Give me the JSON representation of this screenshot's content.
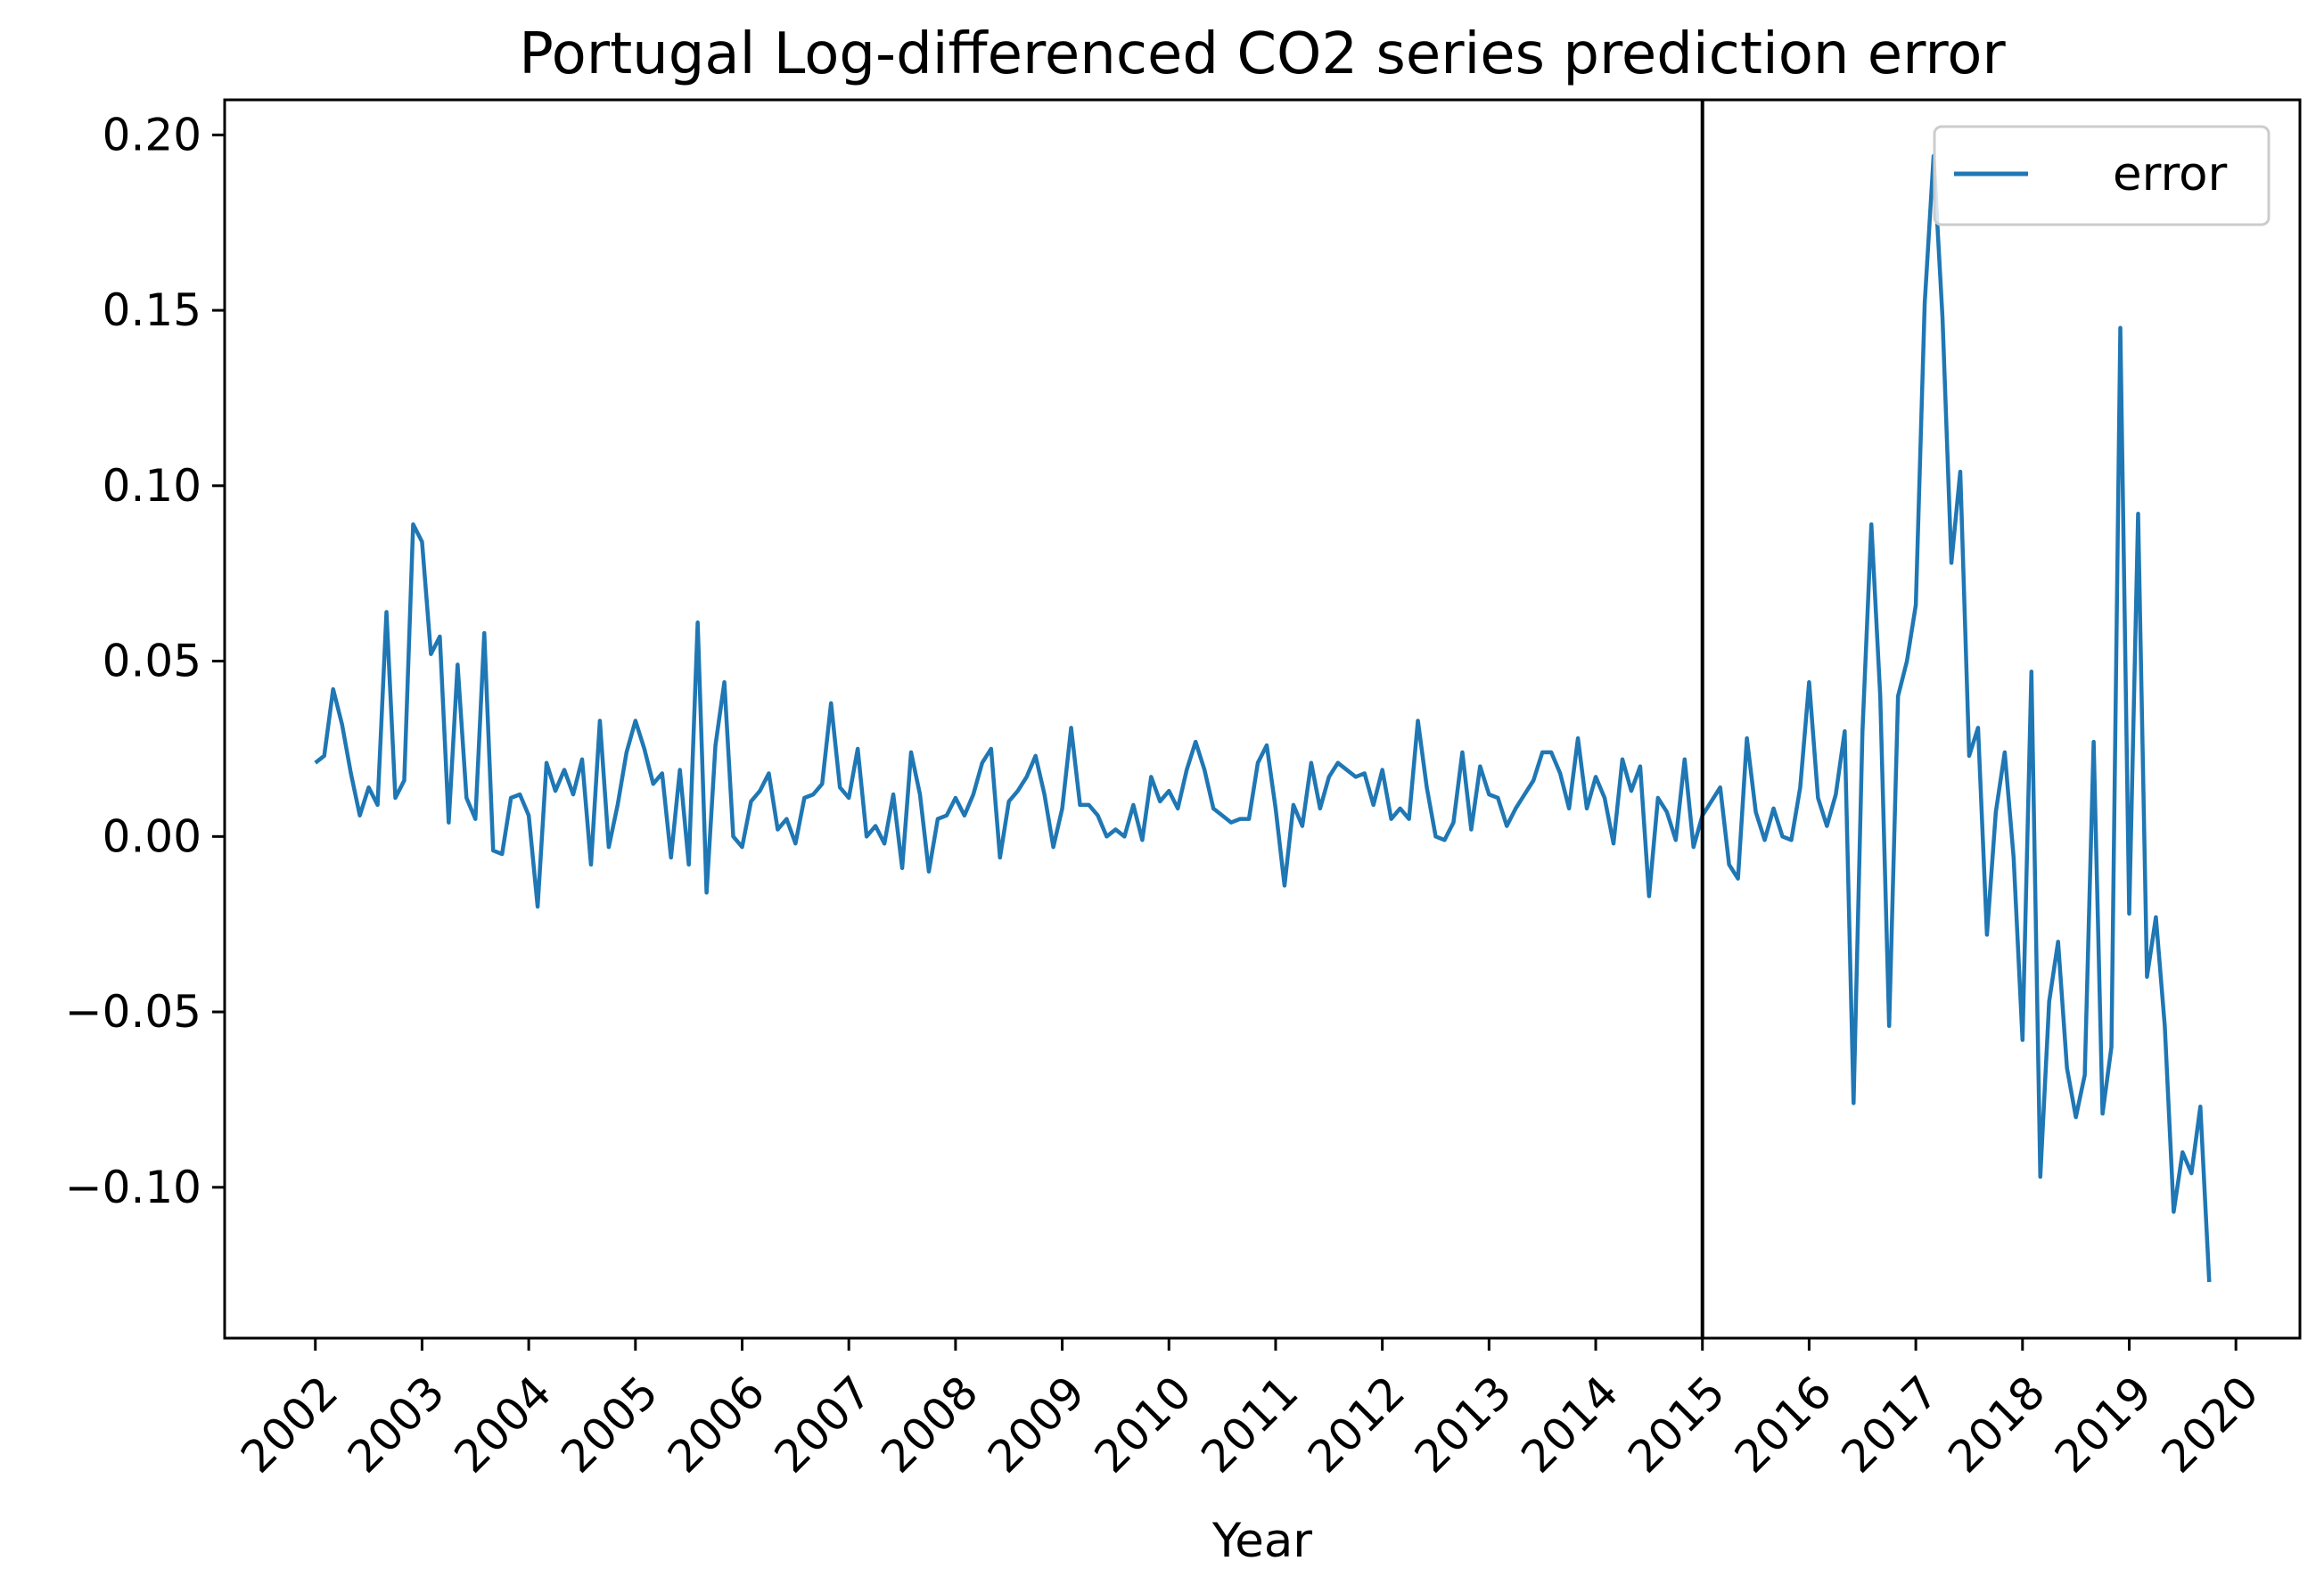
{
  "chart_data": {
    "type": "line",
    "title": "Portugal Log-differenced CO2 series prediction error",
    "xlabel": "Year",
    "ylabel": "",
    "xlim": [
      2001.15,
      2020.6
    ],
    "ylim": [
      -0.143,
      0.21
    ],
    "x_ticks": [
      "2002",
      "2003",
      "2004",
      "2005",
      "2006",
      "2007",
      "2008",
      "2009",
      "2010",
      "2011",
      "2012",
      "2013",
      "2014",
      "2015",
      "2016",
      "2017",
      "2018",
      "2019",
      "2020"
    ],
    "y_ticks": [
      {
        "value": -0.1,
        "label": "−0.10"
      },
      {
        "value": -0.05,
        "label": "−0.05"
      },
      {
        "value": 0.0,
        "label": "0.00"
      },
      {
        "value": 0.05,
        "label": "0.05"
      },
      {
        "value": 0.1,
        "label": "0.10"
      },
      {
        "value": 0.15,
        "label": "0.15"
      },
      {
        "value": 0.2,
        "label": "0.20"
      }
    ],
    "x_start": "2002-01",
    "x_step": "1 month",
    "vline": "2015-01",
    "legend": {
      "position": "top-right",
      "entries": [
        "error"
      ]
    },
    "grid": false,
    "series": [
      {
        "name": "error",
        "color": "#1f77b4",
        "values": [
          0.021,
          0.023,
          0.042,
          0.032,
          0.018,
          0.006,
          0.014,
          0.009,
          0.064,
          0.011,
          0.016,
          0.089,
          0.084,
          0.052,
          0.057,
          0.004,
          0.049,
          0.011,
          0.005,
          0.058,
          -0.004,
          -0.005,
          0.011,
          0.012,
          0.006,
          -0.02,
          0.021,
          0.013,
          0.019,
          0.012,
          0.022,
          -0.008,
          0.033,
          -0.003,
          0.009,
          0.024,
          0.033,
          0.025,
          0.015,
          0.018,
          -0.006,
          0.019,
          -0.008,
          0.061,
          -0.016,
          0.026,
          0.044,
          0.0,
          -0.003,
          0.01,
          0.013,
          0.018,
          0.002,
          0.005,
          -0.002,
          0.011,
          0.012,
          0.015,
          0.038,
          0.014,
          0.011,
          0.025,
          0.0,
          0.003,
          -0.002,
          0.012,
          -0.009,
          0.024,
          0.012,
          -0.01,
          0.005,
          0.006,
          0.011,
          0.006,
          0.012,
          0.021,
          0.025,
          -0.006,
          0.01,
          0.013,
          0.017,
          0.023,
          0.012,
          -0.003,
          0.008,
          0.031,
          0.009,
          0.009,
          0.006,
          0.0,
          0.002,
          0.0,
          0.009,
          -0.001,
          0.017,
          0.01,
          0.013,
          0.008,
          0.019,
          0.027,
          0.019,
          0.008,
          0.006,
          0.004,
          0.005,
          0.005,
          0.021,
          0.026,
          0.008,
          -0.014,
          0.009,
          0.003,
          0.021,
          0.008,
          0.017,
          0.021,
          0.019,
          0.017,
          0.018,
          0.009,
          0.019,
          0.005,
          0.008,
          0.005,
          0.033,
          0.014,
          0.0,
          -0.001,
          0.004,
          0.024,
          0.002,
          0.02,
          0.012,
          0.011,
          0.003,
          0.008,
          0.012,
          0.016,
          0.024,
          0.024,
          0.018,
          0.008,
          0.028,
          0.008,
          0.017,
          0.011,
          -0.002,
          0.022,
          0.013,
          0.02,
          -0.017,
          0.011,
          0.007,
          -0.001,
          0.022,
          -0.003,
          0.006,
          0.01,
          0.014,
          -0.008,
          -0.012,
          0.028,
          0.007,
          -0.001,
          0.008,
          0.0,
          -0.001,
          0.014,
          0.044,
          0.011,
          0.003,
          0.012,
          0.03,
          -0.076,
          0.03,
          0.089,
          0.04,
          -0.054,
          0.04,
          0.05,
          0.066,
          0.152,
          0.194,
          0.148,
          0.078,
          0.104,
          0.023,
          0.031,
          -0.028,
          0.007,
          0.024,
          -0.006,
          -0.058,
          0.047,
          -0.097,
          -0.047,
          -0.03,
          -0.066,
          -0.08,
          -0.068,
          0.027,
          -0.079,
          -0.06,
          0.145,
          -0.022,
          0.092,
          -0.04,
          -0.023,
          -0.054,
          -0.107,
          -0.09,
          -0.096,
          -0.077,
          -0.127
        ]
      }
    ]
  }
}
